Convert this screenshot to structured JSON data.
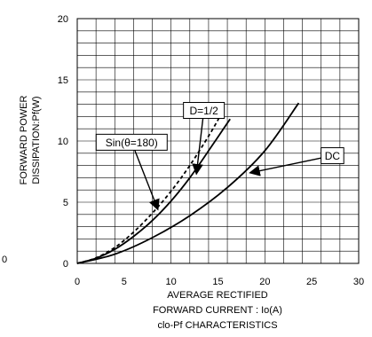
{
  "chart_data": {
    "type": "line",
    "xlabel_lines": [
      "AVERAGE RECTIFIED",
      "FORWARD CURRENT : Io(A)"
    ],
    "caption": "clo-Pf CHARACTERISTICS",
    "ylabel_lines": [
      "FORWARD POWER",
      "DISSIPATION:Pf(W)"
    ],
    "xlim": [
      0,
      30
    ],
    "ylim": [
      0,
      20
    ],
    "x_ticks": [
      0,
      5,
      10,
      15,
      20,
      25,
      30
    ],
    "y_ticks": [
      0,
      5,
      10,
      15,
      20
    ],
    "x_tick_labels": [
      "0",
      "5",
      "10",
      "15",
      "20",
      "25",
      "30"
    ],
    "y_tick_labels": [
      "0",
      "5",
      "10",
      "15",
      "20"
    ],
    "stray_label": "0",
    "grid": true,
    "series": [
      {
        "name": "Sin(θ=180)",
        "style": "dashed",
        "x": [
          0,
          2,
          4,
          6,
          8,
          10,
          12,
          14,
          15.2
        ],
        "y": [
          0,
          0.45,
          1.3,
          2.55,
          4.1,
          5.9,
          8.0,
          10.4,
          12.0
        ]
      },
      {
        "name": "D=1/2",
        "style": "solid",
        "x": [
          0,
          2,
          4,
          6,
          8,
          10,
          12,
          14,
          16.3
        ],
        "y": [
          0,
          0.42,
          1.15,
          2.2,
          3.5,
          5.1,
          7.0,
          9.2,
          11.8
        ]
      },
      {
        "name": "DC",
        "style": "solid",
        "x": [
          0,
          4,
          8,
          12,
          16,
          20,
          23.6
        ],
        "y": [
          0,
          0.75,
          2.1,
          3.9,
          6.2,
          9.2,
          13.1
        ]
      }
    ],
    "annotations": [
      {
        "label": "D=1/2",
        "box_at": [
          13.5,
          12.5
        ],
        "points_to": [
          12.7,
          7.3
        ]
      },
      {
        "label": "Sin(θ=180)",
        "box_at": [
          5.8,
          9.9
        ],
        "points_to": [
          8.6,
          4.4
        ]
      },
      {
        "label": "DC",
        "box_at": [
          27.2,
          8.8
        ],
        "points_to": [
          18.4,
          7.4
        ]
      }
    ]
  }
}
